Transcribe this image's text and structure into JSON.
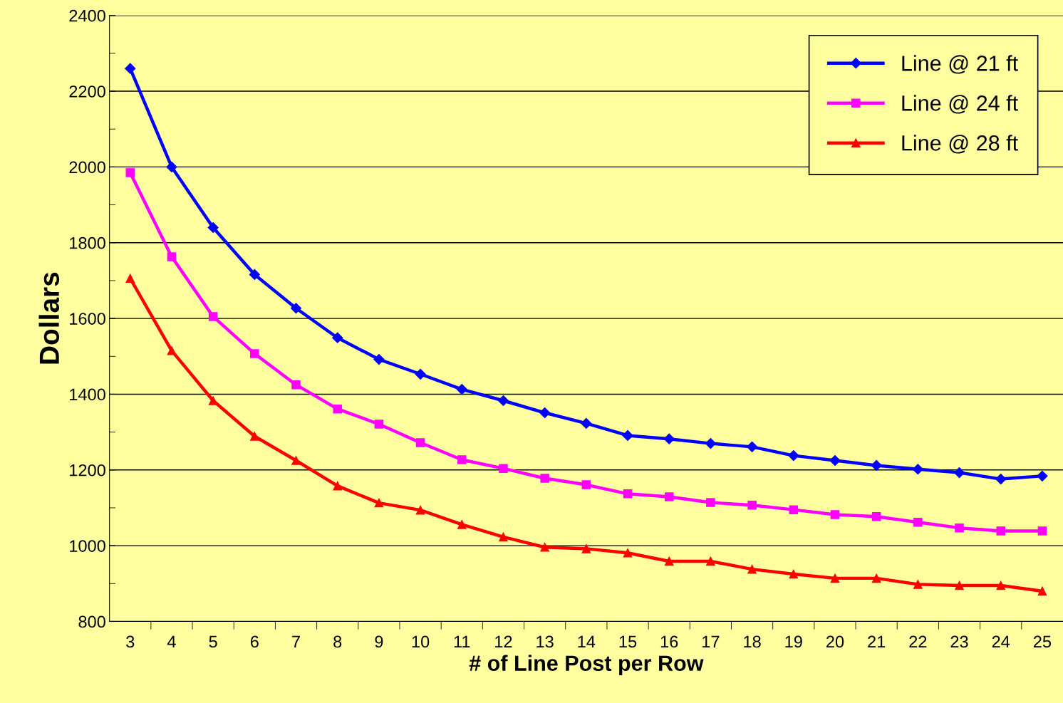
{
  "chart_data": {
    "type": "line",
    "xlabel": "# of Line Post per Row",
    "ylabel": "Dollars",
    "categories": [
      "3",
      "4",
      "5",
      "6",
      "7",
      "8",
      "9",
      "10",
      "11",
      "12",
      "13",
      "14",
      "15",
      "16",
      "17",
      "18",
      "19",
      "20",
      "21",
      "22",
      "23",
      "24",
      "25"
    ],
    "series": [
      {
        "name": "Line @ 21 ft",
        "color": "#0000ff",
        "marker": "diamond",
        "values": [
          2260,
          2000,
          1840,
          1716,
          1627,
          1549,
          1492,
          1453,
          1413,
          1383,
          1351,
          1323,
          1291,
          1282,
          1270,
          1261,
          1238,
          1225,
          1212,
          1202,
          1193,
          1176,
          1184
        ]
      },
      {
        "name": "Line @ 24 ft",
        "color": "#ff00ff",
        "marker": "square",
        "values": [
          1985,
          1763,
          1605,
          1507,
          1425,
          1361,
          1321,
          1272,
          1227,
          1204,
          1178,
          1161,
          1137,
          1129,
          1114,
          1107,
          1095,
          1082,
          1077,
          1062,
          1047,
          1039,
          1039
        ]
      },
      {
        "name": "Line @ 28 ft",
        "color": "#ff0000",
        "marker": "triangle",
        "values": [
          1706,
          1515,
          1383,
          1289,
          1225,
          1158,
          1113,
          1094,
          1056,
          1023,
          996,
          992,
          981,
          959,
          959,
          938,
          925,
          914,
          914,
          898,
          895,
          895,
          880
        ]
      }
    ],
    "ylim": [
      800,
      2400
    ],
    "yticks": [
      800,
      1000,
      1200,
      1400,
      1600,
      1800,
      2000,
      2200,
      2400
    ],
    "grid": "y",
    "legend": "top right",
    "line_style": "solid"
  }
}
